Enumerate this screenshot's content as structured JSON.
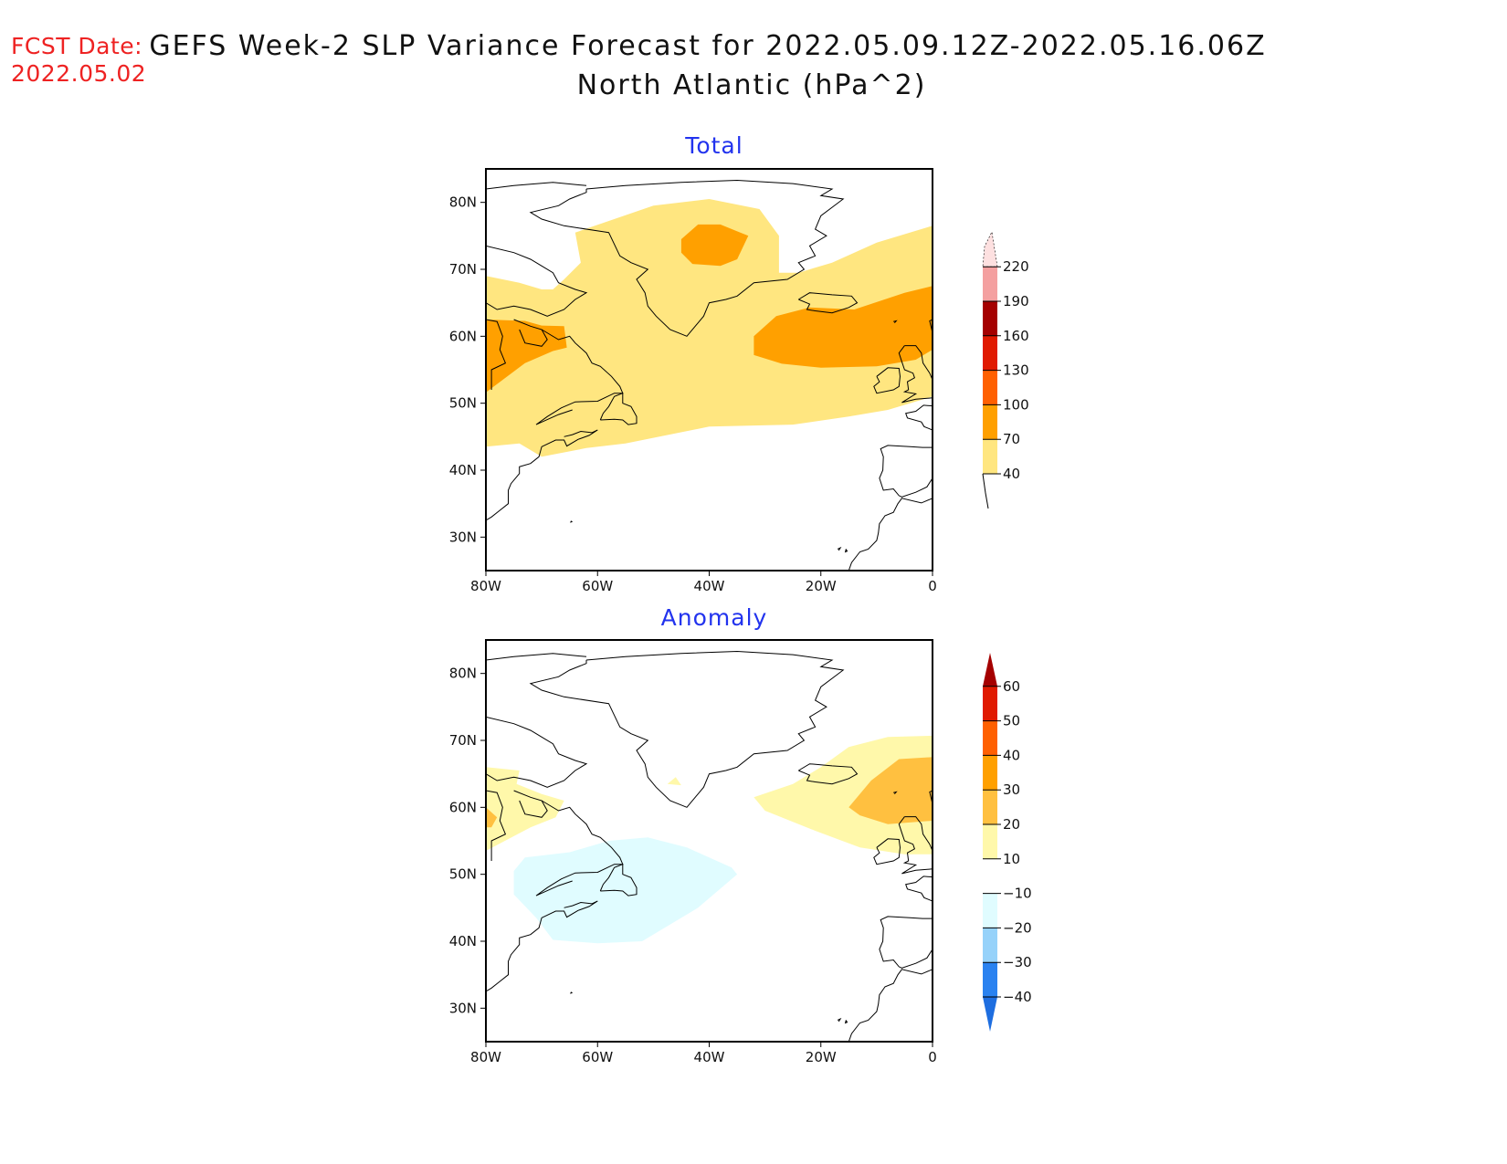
{
  "header": {
    "fcst_label": "FCST Date:",
    "fcst_date": "2022.05.02",
    "title_line1": "GEFS Week-2 SLP Variance Forecast for 2022.05.09.12Z-2022.05.16.06Z",
    "title_line2": "North Atlantic (hPa^2)"
  },
  "colors": {
    "title_text": "#111111",
    "fcst_text": "#ee2222",
    "panel_title": "#2233ee",
    "coast": "#000000"
  },
  "chart_data": [
    {
      "type": "heatmap",
      "title": "Total",
      "units": "hPa^2",
      "xlabel": "",
      "ylabel": "",
      "xlim": [
        -80,
        0
      ],
      "ylim": [
        25,
        85
      ],
      "x_ticks": [
        {
          "v": -80,
          "label": "80W"
        },
        {
          "v": -60,
          "label": "60W"
        },
        {
          "v": -40,
          "label": "40W"
        },
        {
          "v": -20,
          "label": "20W"
        },
        {
          "v": 0,
          "label": "0"
        }
      ],
      "y_ticks": [
        {
          "v": 30,
          "label": "30N"
        },
        {
          "v": 40,
          "label": "40N"
        },
        {
          "v": 50,
          "label": "50N"
        },
        {
          "v": 60,
          "label": "60N"
        },
        {
          "v": 70,
          "label": "70N"
        },
        {
          "v": 80,
          "label": "80N"
        }
      ],
      "colorbar": {
        "levels": [
          40,
          70,
          100,
          130,
          160,
          190,
          220
        ],
        "colors": [
          "#ffe680",
          "#ffa000",
          "#ff6000",
          "#e01a00",
          "#a50000",
          "#f4a0a0",
          "#fde0e0"
        ],
        "extend": "both",
        "lower_color": "#ffffff",
        "labels": [
          "40",
          "70",
          "100",
          "130",
          "160",
          "190",
          "220"
        ]
      },
      "regions": [
        {
          "level": "40-70",
          "color": "#ffe680",
          "description": "broad band from Labrador across Greenland to Iceland/UK",
          "polygon": [
            [
              -80,
              69
            ],
            [
              -74,
              68
            ],
            [
              -70,
              67
            ],
            [
              -68,
              67
            ],
            [
              -66,
              68.5
            ],
            [
              -63,
              71
            ],
            [
              -64,
              75.5
            ],
            [
              -50,
              79.5
            ],
            [
              -40,
              80.5
            ],
            [
              -31,
              79
            ],
            [
              -27.5,
              75
            ],
            [
              -27.5,
              69.5
            ],
            [
              -24,
              69.5
            ],
            [
              -18,
              71
            ],
            [
              -10,
              74
            ],
            [
              0,
              76.5
            ],
            [
              0,
              51
            ],
            [
              -8,
              49
            ],
            [
              -15,
              48
            ],
            [
              -25,
              46.8
            ],
            [
              -40,
              46.5
            ],
            [
              -55,
              44
            ],
            [
              -62,
              43.3
            ],
            [
              -70,
              42
            ],
            [
              -74,
              44
            ],
            [
              -80,
              43.5
            ]
          ]
        },
        {
          "level": "70-100",
          "color": "#ffa000",
          "description": "Labrador Sea max",
          "polygon": [
            [
              -80,
              62.5
            ],
            [
              -73,
              62.3
            ],
            [
              -70,
              61.6
            ],
            [
              -66,
              61.5
            ],
            [
              -65.5,
              58.3
            ],
            [
              -68,
              57.8
            ],
            [
              -73,
              56
            ],
            [
              -80,
              51.6
            ]
          ]
        },
        {
          "level": "70-100",
          "color": "#ffa000",
          "description": "Greenland Sea max",
          "polygon": [
            [
              -45,
              74.5
            ],
            [
              -42,
              76.7
            ],
            [
              -38,
              76.7
            ],
            [
              -33,
              75
            ],
            [
              -35,
              71.5
            ],
            [
              -38,
              70.5
            ],
            [
              -43,
              70.8
            ],
            [
              -45,
              72.5
            ]
          ]
        },
        {
          "level": "70-100",
          "color": "#ffa000",
          "description": "Iceland-Scandinavia max",
          "polygon": [
            [
              -32,
              60
            ],
            [
              -28,
              63
            ],
            [
              -22,
              64.3
            ],
            [
              -14,
              64
            ],
            [
              -5,
              66.5
            ],
            [
              0,
              67.5
            ],
            [
              0,
              58
            ],
            [
              -3,
              56.5
            ],
            [
              -10,
              55.5
            ],
            [
              -20,
              55.3
            ],
            [
              -27,
              55.9
            ],
            [
              -32,
              57.2
            ]
          ]
        }
      ]
    },
    {
      "type": "heatmap",
      "title": "Anomaly",
      "units": "hPa^2",
      "xlabel": "",
      "ylabel": "",
      "xlim": [
        -80,
        0
      ],
      "ylim": [
        25,
        85
      ],
      "x_ticks": [
        {
          "v": -80,
          "label": "80W"
        },
        {
          "v": -60,
          "label": "60W"
        },
        {
          "v": -40,
          "label": "40W"
        },
        {
          "v": -20,
          "label": "20W"
        },
        {
          "v": 0,
          "label": "0"
        }
      ],
      "y_ticks": [
        {
          "v": 30,
          "label": "30N"
        },
        {
          "v": 40,
          "label": "40N"
        },
        {
          "v": 50,
          "label": "50N"
        },
        {
          "v": 60,
          "label": "60N"
        },
        {
          "v": 70,
          "label": "70N"
        },
        {
          "v": 80,
          "label": "80N"
        }
      ],
      "colorbar": {
        "levels": [
          -40,
          -30,
          -20,
          -10,
          10,
          20,
          30,
          40,
          50,
          60
        ],
        "colors_below": [
          "#1e6ee0",
          "#2a82f0",
          "#96d2fa",
          "#e0fcff"
        ],
        "colors_above": [
          "#fff8aa",
          "#ffc040",
          "#ffa000",
          "#ff6000",
          "#e01a00",
          "#a50000"
        ],
        "neutral_color": "#ffffff",
        "extend": "both",
        "labels": [
          "-40",
          "-30",
          "-20",
          "-10",
          "10",
          "20",
          "30",
          "40",
          "50",
          "60"
        ]
      },
      "regions": [
        {
          "level": "10-20",
          "color": "#fff8aa",
          "description": "Labrador positive",
          "polygon": [
            [
              -80,
              66
            ],
            [
              -74,
              65.5
            ],
            [
              -74.5,
              63.5
            ],
            [
              -70,
              62
            ],
            [
              -66,
              61
            ],
            [
              -67.5,
              58.5
            ],
            [
              -72,
              57
            ],
            [
              -80,
              53.5
            ]
          ]
        },
        {
          "level": "20-30",
          "color": "#ffc040",
          "description": "Labrador small",
          "polygon": [
            [
              -80,
              60
            ],
            [
              -78,
              58.5
            ],
            [
              -79,
              57
            ],
            [
              -80,
              57
            ]
          ]
        },
        {
          "level": "10-20",
          "color": "#fff8aa",
          "description": "Iceland-UK positive",
          "polygon": [
            [
              -32,
              61.5
            ],
            [
              -25,
              63.5
            ],
            [
              -20,
              66
            ],
            [
              -15,
              69
            ],
            [
              -8,
              70.5
            ],
            [
              0,
              70.7
            ],
            [
              0,
              53
            ],
            [
              -5,
              53
            ],
            [
              -13,
              54
            ],
            [
              -21,
              56.5
            ],
            [
              -30,
              59.5
            ]
          ]
        },
        {
          "level": "20-30",
          "color": "#ffc040",
          "description": "Iceland-Norway max",
          "polygon": [
            [
              -15,
              60
            ],
            [
              -11,
              64
            ],
            [
              -6,
              67.2
            ],
            [
              0,
              67.5
            ],
            [
              0,
              58
            ],
            [
              -8,
              57.5
            ],
            [
              -13,
              58.8
            ]
          ]
        },
        {
          "level": "10-20",
          "color": "#fff8aa",
          "description": "Greenland small",
          "polygon": [
            [
              -47.5,
              63.5
            ],
            [
              -46,
              64.5
            ],
            [
              -45,
              63.3
            ]
          ]
        },
        {
          "level": "-20--10",
          "color": "#e0fcff",
          "description": "Newfoundland negative",
          "polygon": [
            [
              -75,
              50.5
            ],
            [
              -73,
              52.5
            ],
            [
              -65,
              53.3
            ],
            [
              -58,
              55
            ],
            [
              -51,
              55.5
            ],
            [
              -44,
              54
            ],
            [
              -36,
              51
            ],
            [
              -35,
              50
            ],
            [
              -42,
              45
            ],
            [
              -52,
              40
            ],
            [
              -60,
              39.7
            ],
            [
              -68,
              40.2
            ],
            [
              -71,
              43.5
            ],
            [
              -75,
              47
            ]
          ]
        }
      ]
    }
  ]
}
